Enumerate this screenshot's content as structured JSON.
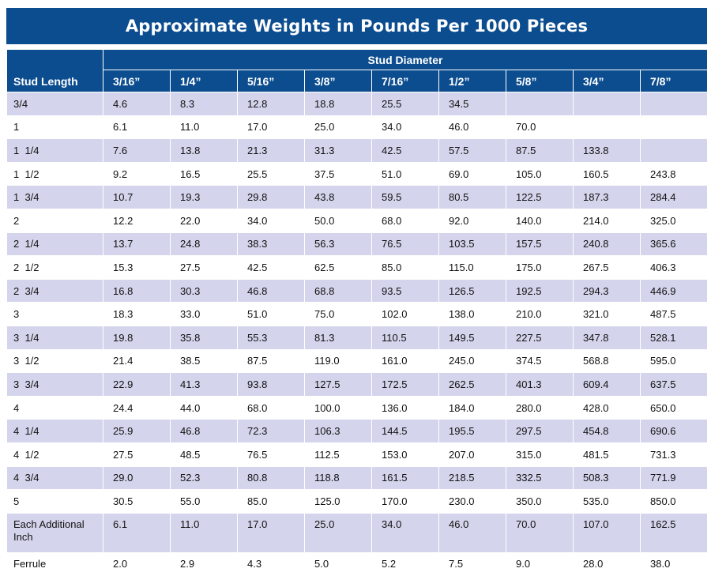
{
  "title": "Approximate Weights in Pounds Per 1000 Pieces",
  "header": {
    "row_label": "Stud Length",
    "group_label": "Stud Diameter",
    "diameters": [
      "3/16”",
      "1/4”",
      "5/16”",
      "3/8”",
      "7/16”",
      "1/2”",
      "5/8”",
      "3/4”",
      "7/8”"
    ]
  },
  "rows": [
    {
      "length": "3/4",
      "values": [
        "4.6",
        "8.3",
        "12.8",
        "18.8",
        "25.5",
        "34.5",
        "",
        "",
        ""
      ]
    },
    {
      "length": "1",
      "values": [
        "6.1",
        "11.0",
        "17.0",
        "25.0",
        "34.0",
        "46.0",
        "70.0",
        "",
        ""
      ]
    },
    {
      "length": "1  1/4",
      "values": [
        "7.6",
        "13.8",
        "21.3",
        "31.3",
        "42.5",
        "57.5",
        "87.5",
        "133.8",
        ""
      ]
    },
    {
      "length": "1  1/2",
      "values": [
        "9.2",
        "16.5",
        "25.5",
        "37.5",
        "51.0",
        "69.0",
        "105.0",
        "160.5",
        "243.8"
      ]
    },
    {
      "length": "1  3/4",
      "values": [
        "10.7",
        "19.3",
        "29.8",
        "43.8",
        "59.5",
        "80.5",
        "122.5",
        "187.3",
        "284.4"
      ]
    },
    {
      "length": "2",
      "values": [
        "12.2",
        "22.0",
        "34.0",
        "50.0",
        "68.0",
        "92.0",
        "140.0",
        "214.0",
        "325.0"
      ]
    },
    {
      "length": "2  1/4",
      "values": [
        "13.7",
        "24.8",
        "38.3",
        "56.3",
        "76.5",
        "103.5",
        "157.5",
        "240.8",
        "365.6"
      ]
    },
    {
      "length": "2  1/2",
      "values": [
        "15.3",
        "27.5",
        "42.5",
        "62.5",
        "85.0",
        "115.0",
        "175.0",
        "267.5",
        "406.3"
      ]
    },
    {
      "length": "2  3/4",
      "values": [
        "16.8",
        "30.3",
        "46.8",
        "68.8",
        "93.5",
        "126.5",
        "192.5",
        "294.3",
        "446.9"
      ]
    },
    {
      "length": "3",
      "values": [
        "18.3",
        "33.0",
        "51.0",
        "75.0",
        "102.0",
        "138.0",
        "210.0",
        "321.0",
        "487.5"
      ]
    },
    {
      "length": "3  1/4",
      "values": [
        "19.8",
        "35.8",
        "55.3",
        "81.3",
        "110.5",
        "149.5",
        "227.5",
        "347.8",
        "528.1"
      ]
    },
    {
      "length": "3  1/2",
      "values": [
        "21.4",
        "38.5",
        "87.5",
        "119.0",
        "161.0",
        "245.0",
        "374.5",
        "568.8",
        "595.0"
      ]
    },
    {
      "length": "3  3/4",
      "values": [
        "22.9",
        "41.3",
        "93.8",
        "127.5",
        "172.5",
        "262.5",
        "401.3",
        "609.4",
        "637.5"
      ]
    },
    {
      "length": "4",
      "values": [
        "24.4",
        "44.0",
        "68.0",
        "100.0",
        "136.0",
        "184.0",
        "280.0",
        "428.0",
        "650.0"
      ]
    },
    {
      "length": "4  1/4",
      "values": [
        "25.9",
        "46.8",
        "72.3",
        "106.3",
        "144.5",
        "195.5",
        "297.5",
        "454.8",
        "690.6"
      ]
    },
    {
      "length": "4  1/2",
      "values": [
        "27.5",
        "48.5",
        "76.5",
        "112.5",
        "153.0",
        "207.0",
        "315.0",
        "481.5",
        "731.3"
      ]
    },
    {
      "length": "4  3/4",
      "values": [
        "29.0",
        "52.3",
        "80.8",
        "118.8",
        "161.5",
        "218.5",
        "332.5",
        "508.3",
        "771.9"
      ]
    },
    {
      "length": "5",
      "values": [
        "30.5",
        "55.0",
        "85.0",
        "125.0",
        "170.0",
        "230.0",
        "350.0",
        "535.0",
        "850.0"
      ]
    },
    {
      "length": "Each Additional Inch",
      "values": [
        "6.1",
        "11.0",
        "17.0",
        "25.0",
        "34.0",
        "46.0",
        "70.0",
        "107.0",
        "162.5"
      ]
    },
    {
      "length": "Ferrule",
      "values": [
        "2.0",
        "2.9",
        "4.3",
        "5.0",
        "5.2",
        "7.5",
        "9.0",
        "28.0",
        "38.0"
      ]
    }
  ]
}
